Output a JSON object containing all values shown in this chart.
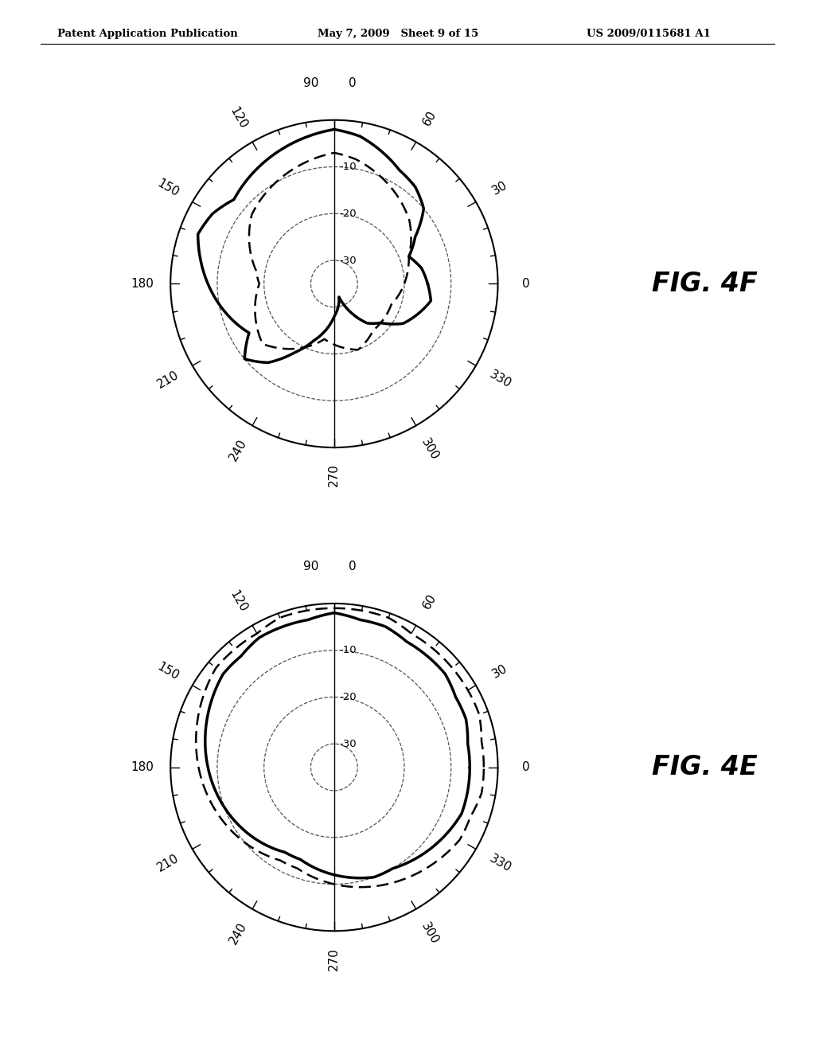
{
  "header_left": "Patent Application Publication",
  "header_mid": "May 7, 2009   Sheet 9 of 15",
  "header_right": "US 2009/0115681 A1",
  "fig_top_label": "FIG. 4F",
  "fig_bot_label": "FIG. 4E",
  "background_color": "#ffffff",
  "max_db": 35,
  "ring_dbs": [
    10,
    20,
    30
  ],
  "angle_ticks_deg": [
    0,
    30,
    60,
    90,
    120,
    150,
    180,
    210,
    240,
    270,
    300,
    330
  ]
}
